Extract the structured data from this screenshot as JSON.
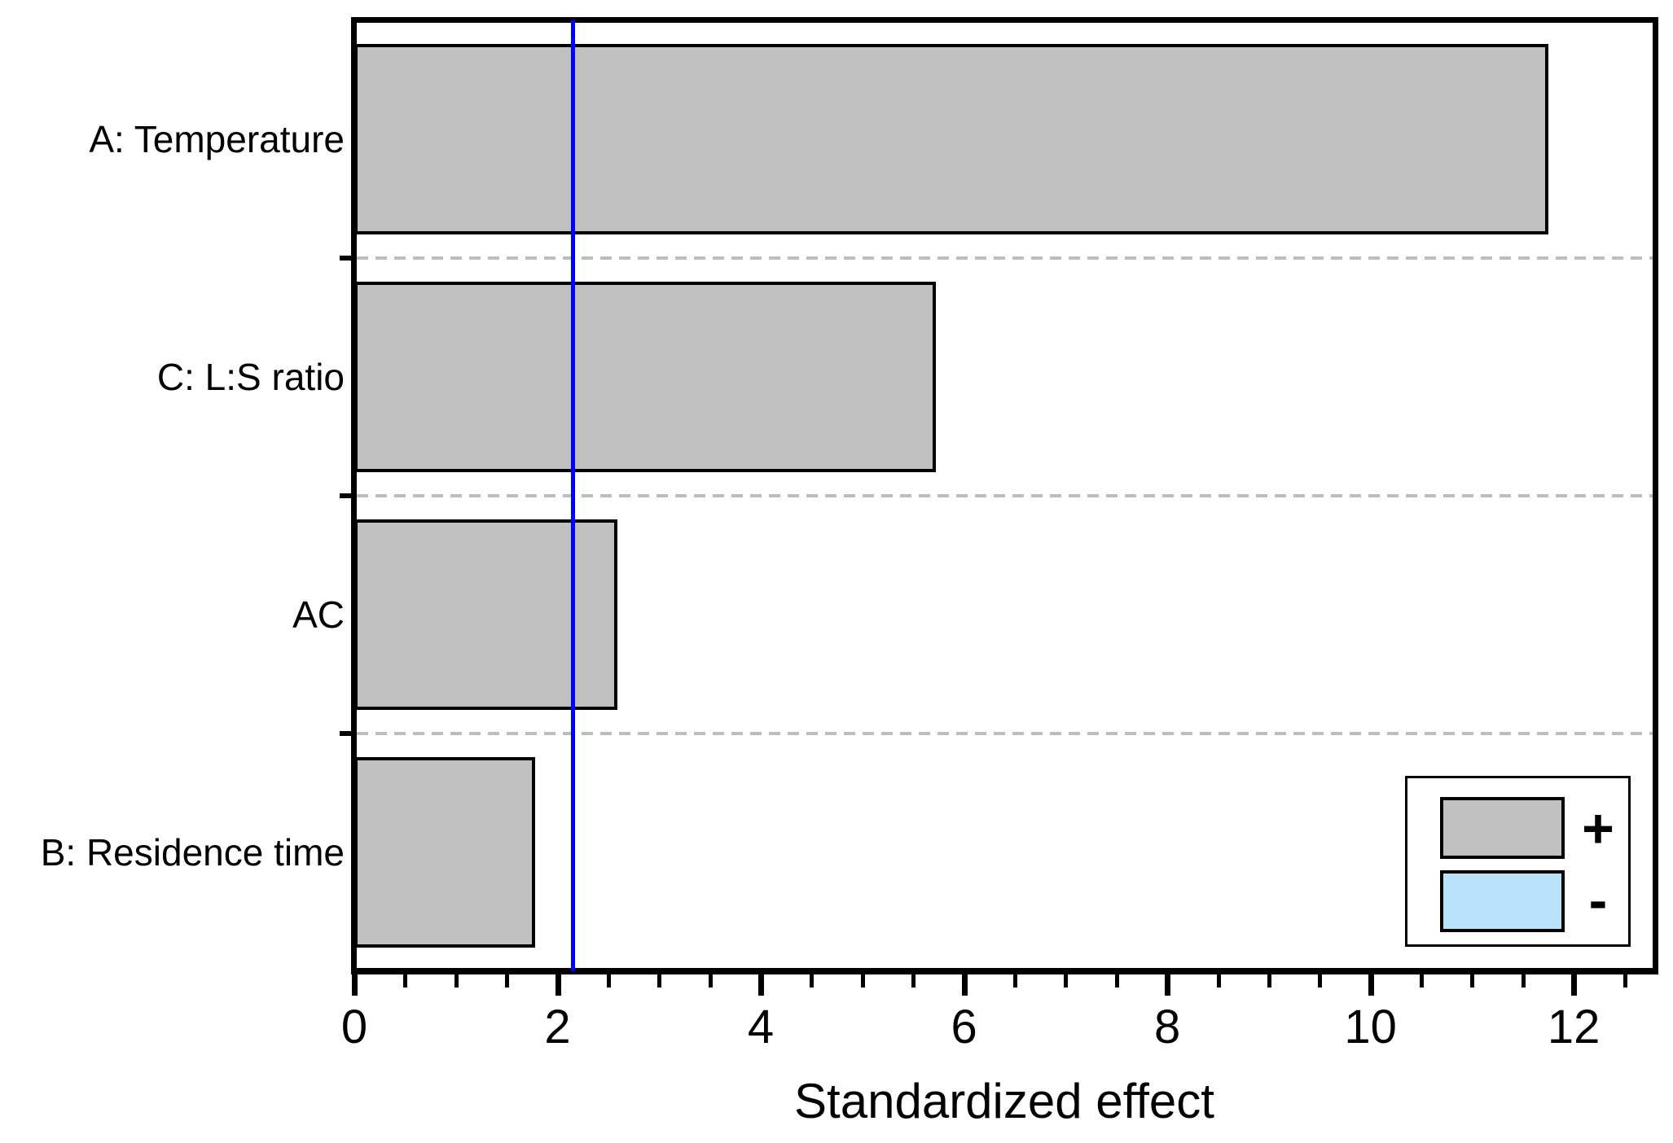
{
  "chart_data": {
    "type": "bar",
    "orientation": "horizontal",
    "title": "",
    "xlabel": "Standardized effect",
    "ylabel": "",
    "categories": [
      "A: Temperature",
      "C: L:S ratio",
      "AC",
      "B: Residence time"
    ],
    "values": [
      11.75,
      5.72,
      2.59,
      1.78
    ],
    "xlim": [
      0,
      12.8
    ],
    "x_major_ticks": [
      0,
      2,
      4,
      6,
      8,
      10,
      12
    ],
    "x_minor_step": 0.5,
    "reference_line": {
      "value": 2.15,
      "color": "#0000ff"
    },
    "grid_separators": "dashed",
    "legend_position": "bottom-right",
    "colors": {
      "positive_fill": "#c0c0c0",
      "negative_fill": "#b9e3fb",
      "bar_border": "#000000",
      "grid": "#bdbdbd",
      "axis": "#000000"
    },
    "legend": {
      "entries": [
        {
          "symbol": "+",
          "color": "#c0c0c0"
        },
        {
          "symbol": "-",
          "color": "#b9e3fb"
        }
      ]
    }
  }
}
